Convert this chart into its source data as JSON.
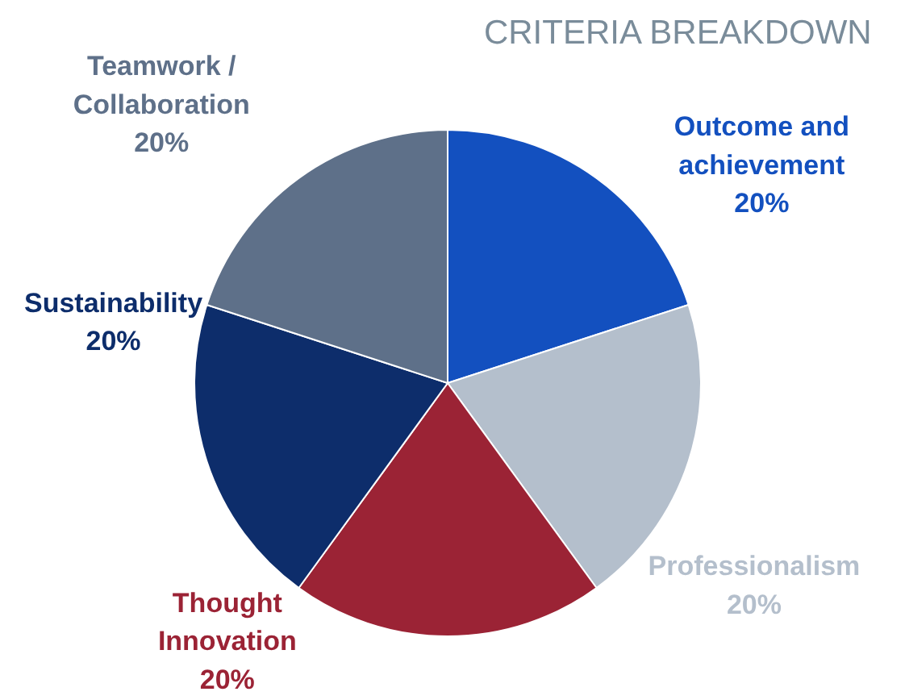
{
  "chart_data": {
    "type": "pie",
    "title": "CRITERIA BREAKDOWN",
    "categories": [
      "Outcome and\nachievement",
      "Professionalism",
      "Thought\nInnovation",
      "Sustainability",
      "Teamwork /\nCollaboration"
    ],
    "values": [
      20,
      20,
      20,
      20,
      20
    ],
    "value_labels": [
      "20%",
      "20%",
      "20%",
      "20%",
      "20%"
    ],
    "colors": [
      "#1350bf",
      "#b4bfcc",
      "#9b2335",
      "#0d2d6b",
      "#5e7089"
    ]
  }
}
